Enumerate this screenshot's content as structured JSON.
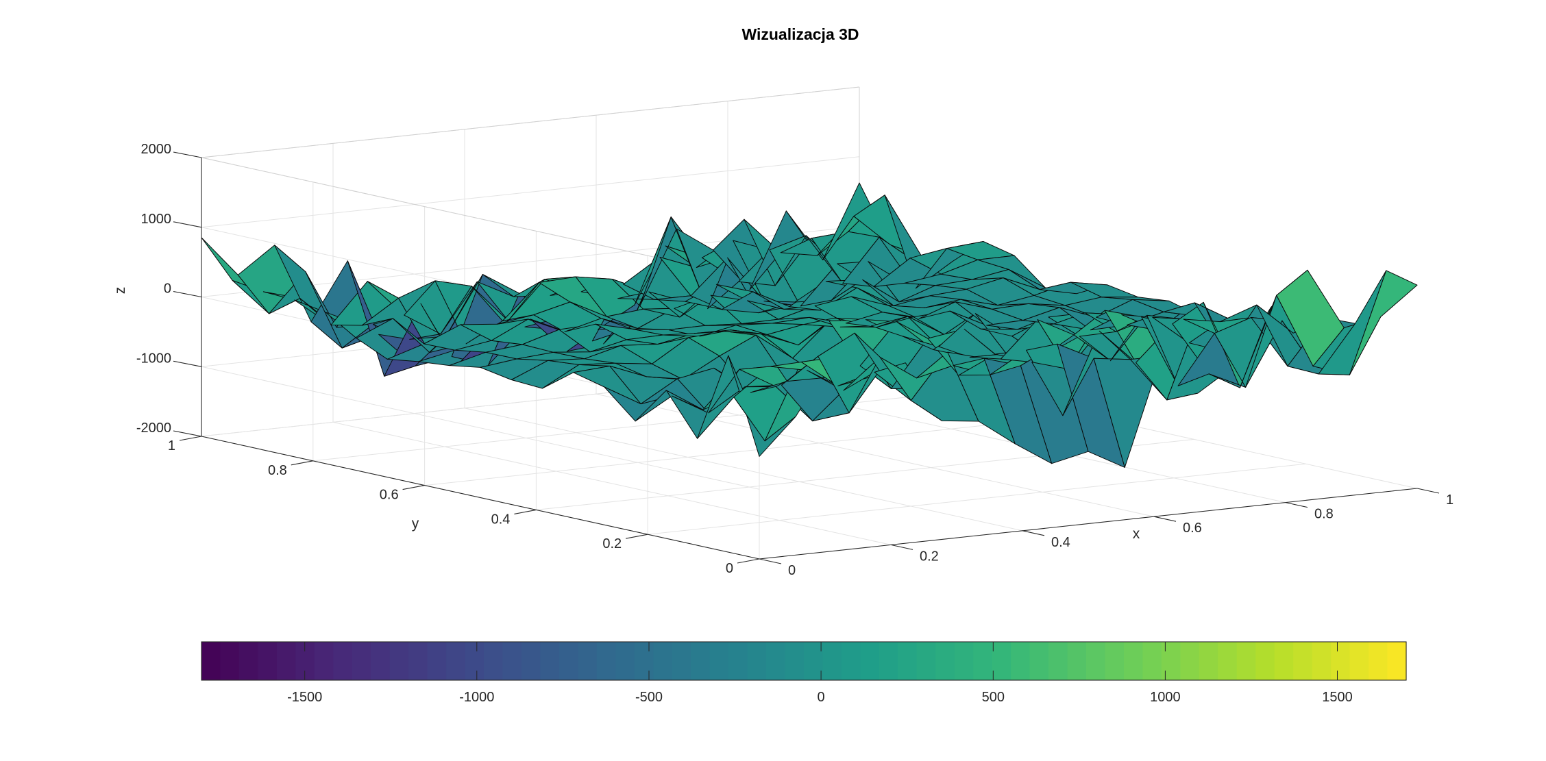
{
  "chart_data": {
    "type": "surface3d",
    "title": "Wizualizacja 3D",
    "xlabel": "x",
    "ylabel": "y",
    "zlabel": "z",
    "xlim": [
      0,
      1
    ],
    "ylim": [
      0,
      1
    ],
    "zlim": [
      -2000,
      2000
    ],
    "x_ticks": [
      0,
      0.2,
      0.4,
      0.6,
      0.8,
      1
    ],
    "y_ticks": [
      0,
      0.2,
      0.4,
      0.6,
      0.8,
      1
    ],
    "z_ticks": [
      -2000,
      -1000,
      0,
      1000,
      2000
    ],
    "x_tick_labels": [
      "0",
      "0.2",
      "0.4",
      "0.6",
      "0.8",
      "1"
    ],
    "y_tick_labels": [
      "0",
      "0.2",
      "0.4",
      "0.6",
      "0.8",
      "1"
    ],
    "z_tick_labels": [
      "-2000",
      "-1000",
      "0",
      "1000",
      "2000"
    ],
    "grid": true,
    "colormap": "viridis",
    "colormap_stops": [
      "#440154",
      "#482878",
      "#3e4989",
      "#31688e",
      "#26828e",
      "#1f9e89",
      "#35b779",
      "#6ece58",
      "#b5de2b",
      "#fde725"
    ],
    "color_limits": [
      -1800,
      1700
    ],
    "colorbar": {
      "location": "bottom",
      "ticks": [
        -1500,
        -1000,
        -500,
        0,
        500,
        1000,
        1500
      ],
      "tick_labels": [
        "-1500",
        "-1000",
        "-500",
        "0",
        "500",
        "1000",
        "1500"
      ]
    },
    "grid_size": [
      19,
      19
    ],
    "z_amplitude_estimate": 1500
  }
}
